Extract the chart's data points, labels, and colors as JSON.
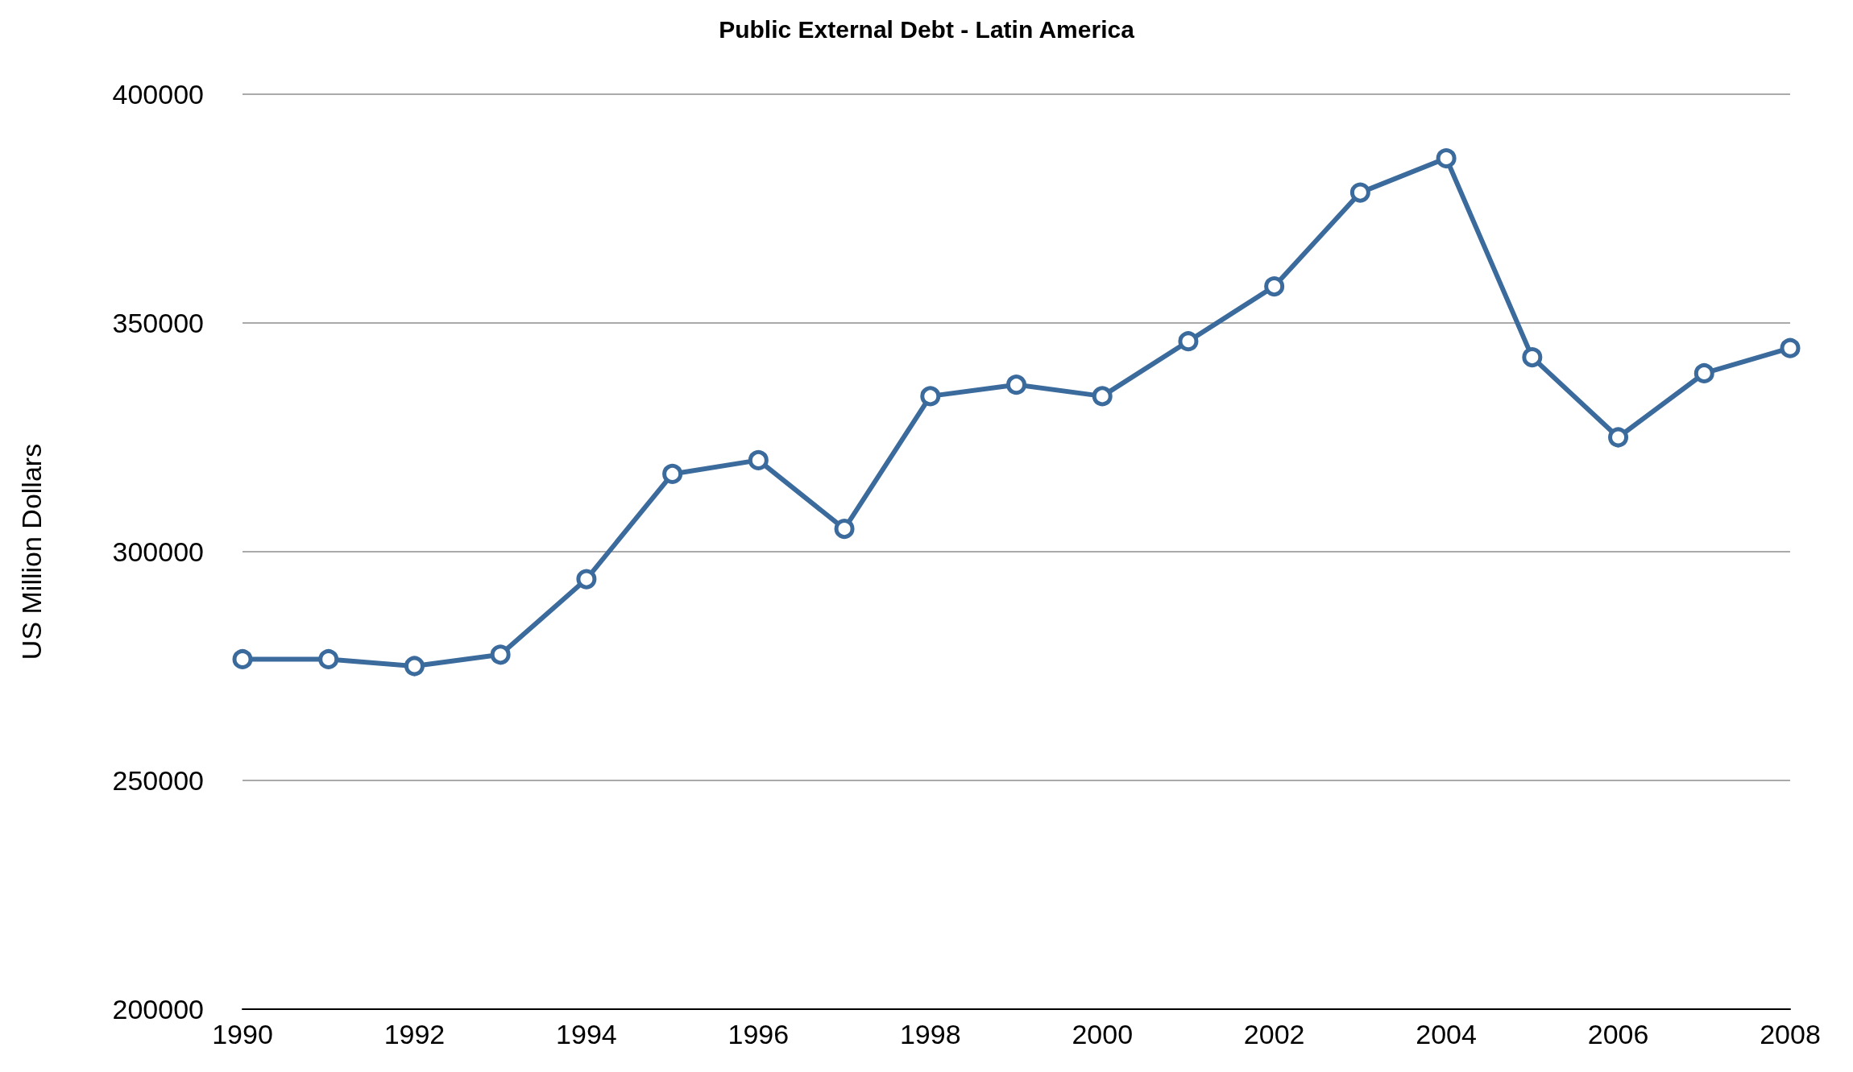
{
  "chart_data": {
    "type": "line",
    "title": "Public External Debt - Latin America",
    "ylabel": "US Million Dollars",
    "x": [
      1990,
      1991,
      1992,
      1993,
      1994,
      1995,
      1996,
      1997,
      1998,
      1999,
      2000,
      2001,
      2002,
      2003,
      2004,
      2005,
      2006,
      2007,
      2008
    ],
    "series": [
      {
        "color": "#3b6a9c",
        "values": [
          276500,
          276500,
          275000,
          277500,
          294000,
          317000,
          320000,
          305000,
          334000,
          336500,
          334000,
          346000,
          358000,
          378500,
          386000,
          342500,
          325000,
          339000,
          344500
        ]
      }
    ],
    "xlim": [
      1990,
      2008
    ],
    "xticks": [
      1990,
      1992,
      1994,
      1996,
      1998,
      2000,
      2002,
      2004,
      2006,
      2008
    ],
    "ylim": [
      200000,
      400000
    ],
    "yticks": [
      200000,
      250000,
      300000,
      350000,
      400000
    ],
    "grid": "y",
    "marker": "circle",
    "line_style": "solid"
  }
}
